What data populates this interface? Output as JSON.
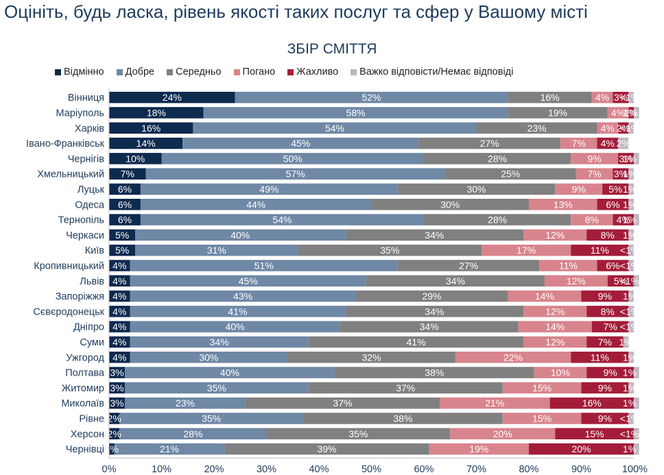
{
  "page": {
    "title": "Оцініть, будь ласка, рівень якості таких послуг та сфер у Вашому місті"
  },
  "chart_data": {
    "type": "bar",
    "orientation": "horizontal",
    "stacked": "100%",
    "title": "ЗБІР СМІТТЯ",
    "legend_position": "top",
    "xlim": [
      0,
      100
    ],
    "x_ticks": [
      "0%",
      "10%",
      "20%",
      "30%",
      "40%",
      "50%",
      "60%",
      "70%",
      "80%",
      "90%",
      "100%"
    ],
    "categories": [
      "Вінниця",
      "Маріуполь",
      "Харків",
      "Івано-Франківськ",
      "Чернігів",
      "Хмельницький",
      "Луцьк",
      "Одеса",
      "Тернопіль",
      "Черкаси",
      "Київ",
      "Кропивницький",
      "Львів",
      "Запоріжжя",
      "Сєвєродонецьк",
      "Дніпро",
      "Суми",
      "Ужгород",
      "Полтава",
      "Житомир",
      "Миколаїв",
      "Рівне",
      "Херсон",
      "Чернівці"
    ],
    "series": [
      {
        "name": "Відмінно",
        "color": "#0d2a4f",
        "values": [
          24,
          18,
          16,
          14,
          10,
          7,
          6,
          6,
          6,
          5,
          5,
          4,
          4,
          4,
          4,
          4,
          4,
          4,
          3,
          3,
          3,
          2,
          2,
          1
        ],
        "labels": [
          "24%",
          "18%",
          "16%",
          "14%",
          "10%",
          "7%",
          "6%",
          "6%",
          "6%",
          "5%",
          "5%",
          "4%",
          "4%",
          "4%",
          "4%",
          "4%",
          "4%",
          "4%",
          "3%",
          "3%",
          "3%",
          "2%",
          "2%",
          "1%"
        ]
      },
      {
        "name": "Добре",
        "color": "#6f88a6",
        "values": [
          52,
          58,
          54,
          45,
          50,
          57,
          49,
          44,
          54,
          40,
          31,
          51,
          45,
          43,
          41,
          40,
          34,
          30,
          40,
          35,
          23,
          35,
          28,
          21
        ],
        "labels": [
          "52%",
          "58%",
          "54%",
          "45%",
          "50%",
          "57%",
          "49%",
          "44%",
          "54%",
          "40%",
          "31%",
          "51%",
          "45%",
          "43%",
          "41%",
          "40%",
          "34%",
          "30%",
          "40%",
          "35%",
          "23%",
          "35%",
          "28%",
          "21%"
        ]
      },
      {
        "name": "Середньо",
        "color": "#808080",
        "values": [
          16,
          19,
          23,
          27,
          28,
          25,
          30,
          30,
          28,
          34,
          35,
          27,
          34,
          29,
          34,
          34,
          41,
          32,
          38,
          37,
          37,
          38,
          35,
          39
        ],
        "labels": [
          "16%",
          "19%",
          "23%",
          "27%",
          "28%",
          "25%",
          "30%",
          "30%",
          "28%",
          "34%",
          "35%",
          "27%",
          "34%",
          "29%",
          "34%",
          "34%",
          "41%",
          "32%",
          "38%",
          "37%",
          "37%",
          "38%",
          "35%",
          "39%"
        ]
      },
      {
        "name": "Погано",
        "color": "#d8848d",
        "values": [
          4,
          4,
          4,
          7,
          9,
          7,
          9,
          13,
          8,
          12,
          17,
          11,
          12,
          14,
          12,
          14,
          12,
          22,
          10,
          15,
          21,
          15,
          20,
          19
        ],
        "labels": [
          "4%",
          "4%",
          "4%",
          "7%",
          "9%",
          "7%",
          "9%",
          "13%",
          "8%",
          "12%",
          "17%",
          "11%",
          "12%",
          "14%",
          "12%",
          "14%",
          "12%",
          "22%",
          "10%",
          "15%",
          "21%",
          "15%",
          "20%",
          "19%"
        ]
      },
      {
        "name": "Жахливо",
        "color": "#a31d3a",
        "values": [
          3,
          1,
          2,
          4,
          3,
          3,
          5,
          6,
          4,
          8,
          11,
          6,
          5,
          9,
          8,
          7,
          7,
          11,
          9,
          9,
          16,
          9,
          15,
          20
        ],
        "labels": [
          "3%",
          "1%",
          "2%",
          "4%",
          "3%",
          "3%",
          "5%",
          "6%",
          "4%",
          "8%",
          "11%",
          "6%",
          "5%",
          "9%",
          "8%",
          "7%",
          "7%",
          "11%",
          "9%",
          "9%",
          "16%",
          "9%",
          "15%",
          "20%"
        ]
      },
      {
        "name": "Важко відповісти/Немає відповіді",
        "color": "#c2b5c0",
        "values": [
          1,
          1,
          1,
          2,
          1,
          1,
          1,
          1,
          1,
          1,
          1,
          1,
          1,
          1,
          1,
          1,
          1,
          1,
          1,
          1,
          1,
          1,
          1,
          1
        ],
        "labels": [
          "<1%",
          "1%",
          "<1%",
          "2%",
          "1%",
          "1%",
          "1%",
          "1%",
          "1%",
          "1%",
          "<1%",
          "<1%",
          "<1%",
          "1%",
          "<1%",
          "<1%",
          "1%",
          "1%",
          "1%",
          "1%",
          "1%",
          "<1%",
          "<1%",
          "1%"
        ]
      }
    ]
  }
}
